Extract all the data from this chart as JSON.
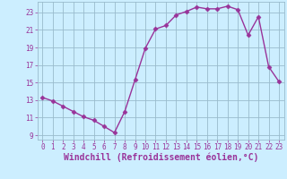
{
  "x": [
    0,
    1,
    2,
    3,
    4,
    5,
    6,
    7,
    8,
    9,
    10,
    11,
    12,
    13,
    14,
    15,
    16,
    17,
    18,
    19,
    20,
    21,
    22,
    23
  ],
  "y": [
    13.3,
    12.9,
    12.3,
    11.7,
    11.1,
    10.7,
    10.0,
    9.3,
    11.7,
    15.3,
    18.9,
    21.1,
    21.5,
    22.7,
    23.1,
    23.6,
    23.4,
    23.4,
    23.7,
    23.3,
    20.4,
    22.5,
    16.8,
    15.1
  ],
  "line_color": "#993399",
  "marker": "D",
  "markersize": 2.5,
  "linewidth": 1.0,
  "background_color": "#cceeff",
  "grid_color": "#99bbcc",
  "xlabel": "Windchill (Refroidissement éolien,°C)",
  "xlabel_color": "#993399",
  "xlim": [
    -0.5,
    23.5
  ],
  "ylim": [
    8.5,
    24.2
  ],
  "yticks": [
    9,
    11,
    13,
    15,
    17,
    19,
    21,
    23
  ],
  "xticks": [
    0,
    1,
    2,
    3,
    4,
    5,
    6,
    7,
    8,
    9,
    10,
    11,
    12,
    13,
    14,
    15,
    16,
    17,
    18,
    19,
    20,
    21,
    22,
    23
  ],
  "tick_color": "#993399",
  "tick_labelsize": 5.5,
  "xlabel_fontsize": 7.0
}
